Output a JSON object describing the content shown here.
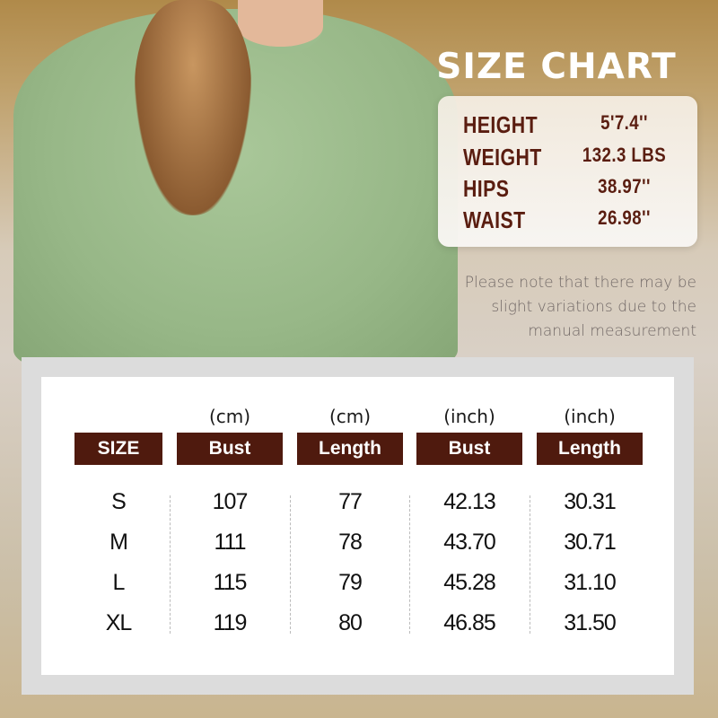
{
  "title": "SIZE CHART",
  "model_stats": [
    {
      "label": "HEIGHT",
      "value": "5'7.4''"
    },
    {
      "label": "WEIGHT",
      "value": "132.3 LBS"
    },
    {
      "label": "HIPS",
      "value": "38.97''"
    },
    {
      "label": "WAIST",
      "value": "26.98''"
    }
  ],
  "note": "Please note that there may be slight variations due to the manual measurement",
  "colors": {
    "header_bg": "#4f1a0e",
    "stat_text": "#5a1d10",
    "sweater": "#9dbd8e"
  },
  "table": {
    "columns": [
      {
        "unit": "",
        "label": "SIZE"
      },
      {
        "unit": "(cm)",
        "label": "Bust"
      },
      {
        "unit": "(cm)",
        "label": "Length"
      },
      {
        "unit": "(inch)",
        "label": "Bust"
      },
      {
        "unit": "(inch)",
        "label": "Length"
      }
    ],
    "rows": [
      [
        "S",
        "107",
        "77",
        "42.13",
        "30.31"
      ],
      [
        "M",
        "111",
        "78",
        "43.70",
        "30.71"
      ],
      [
        "L",
        "115",
        "79",
        "45.28",
        "31.10"
      ],
      [
        "XL",
        "119",
        "80",
        "46.85",
        "31.50"
      ]
    ]
  }
}
